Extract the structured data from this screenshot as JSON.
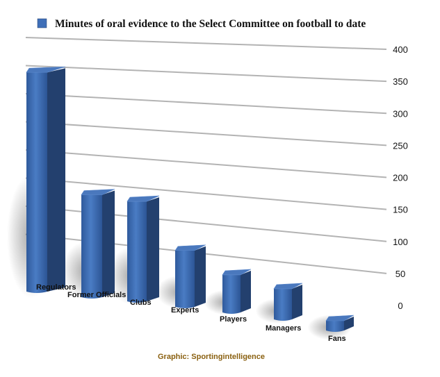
{
  "chart_data": {
    "type": "bar",
    "title": "Minutes of oral evidence to the Select Committee on football to date",
    "legend_position": "top-left",
    "categories": [
      "Regulators",
      "Former Officials",
      "Clubs",
      "Experts",
      "Players",
      "Managers",
      "Fans"
    ],
    "series": [
      {
        "name": "Minutes of oral evidence to the Select Committee on football to date",
        "values": [
          378,
          178,
          172,
          98,
          66,
          54,
          20
        ]
      }
    ],
    "ylim": [
      0,
      400
    ],
    "yticks": [
      "0",
      "50",
      "100",
      "150",
      "200",
      "250",
      "300",
      "350",
      "400"
    ],
    "grid": true,
    "colors": {
      "bar_front": "#3f6fb8",
      "bar_side": "#23406e",
      "bar_top": "#4a78bd",
      "grid": "#b3b3b3"
    }
  },
  "credit": {
    "text": "Graphic: Sportingintelligence",
    "color": "#8a6010"
  }
}
